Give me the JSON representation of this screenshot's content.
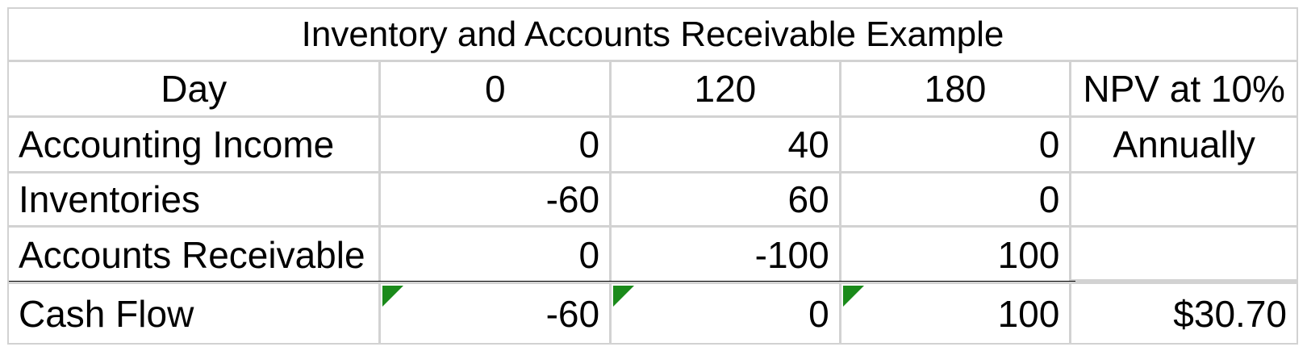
{
  "table": {
    "title": "Inventory and Accounts Receivable Example",
    "header": {
      "label": "Day",
      "days": [
        "0",
        "120",
        "180"
      ],
      "npv_label": "NPV at 10%"
    },
    "rows": [
      {
        "label": "Accounting Income",
        "values": [
          "0",
          "40",
          "0"
        ],
        "npv": "Annually"
      },
      {
        "label": "Inventories",
        "values": [
          "-60",
          "60",
          "0"
        ],
        "npv": ""
      },
      {
        "label": "Accounts Receivable",
        "values": [
          "0",
          "-100",
          "100"
        ],
        "npv": ""
      }
    ],
    "total": {
      "label": "Cash Flow",
      "values": [
        "-60",
        "0",
        "100"
      ],
      "npv": "$30.70"
    },
    "error_indicator_color": "#1a8a1a"
  }
}
